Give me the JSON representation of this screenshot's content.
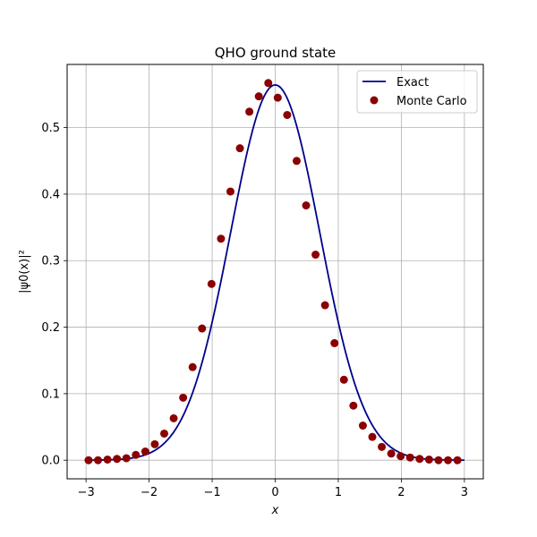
{
  "chart_data": {
    "type": "line",
    "title": "QHO ground state",
    "xlabel": "x",
    "ylabel": "|ψ0(x)|²",
    "xlim": [
      -3.3,
      3.3
    ],
    "ylim": [
      -0.028,
      0.595
    ],
    "xticks": [
      -3,
      -2,
      -1,
      0,
      1,
      2,
      3
    ],
    "xtick_labels": [
      "−3",
      "−2",
      "−1",
      "0",
      "1",
      "2",
      "3"
    ],
    "yticks": [
      0.0,
      0.1,
      0.2,
      0.3,
      0.4,
      0.5
    ],
    "ytick_labels": [
      "0.0",
      "0.1",
      "0.2",
      "0.3",
      "0.4",
      "0.5"
    ],
    "grid": true,
    "legend_position": "upper right",
    "series": [
      {
        "name": "Exact",
        "kind": "line",
        "color": "#00008b",
        "function": "exp(-x^2)/sqrt(pi)",
        "x_range": [
          -3,
          3
        ]
      },
      {
        "name": "Monte Carlo",
        "kind": "scatter",
        "color": "#8b0000",
        "x": [
          -2.96,
          -2.81,
          -2.66,
          -2.51,
          -2.36,
          -2.21,
          -2.06,
          -1.91,
          -1.76,
          -1.61,
          -1.46,
          -1.31,
          -1.16,
          -1.01,
          -0.86,
          -0.71,
          -0.56,
          -0.41,
          -0.26,
          -0.11,
          0.04,
          0.19,
          0.34,
          0.49,
          0.64,
          0.79,
          0.94,
          1.09,
          1.24,
          1.39,
          1.54,
          1.69,
          1.84,
          1.99,
          2.14,
          2.29,
          2.44,
          2.59,
          2.74,
          2.89
        ],
        "y": [
          0.0,
          0.0,
          0.001,
          0.002,
          0.003,
          0.008,
          0.013,
          0.024,
          0.04,
          0.063,
          0.094,
          0.14,
          0.198,
          0.265,
          0.333,
          0.404,
          0.469,
          0.524,
          0.547,
          0.567,
          0.545,
          0.519,
          0.45,
          0.383,
          0.309,
          0.233,
          0.176,
          0.121,
          0.082,
          0.052,
          0.035,
          0.02,
          0.01,
          0.006,
          0.004,
          0.002,
          0.001,
          0.0,
          0.0,
          0.0
        ]
      }
    ]
  }
}
